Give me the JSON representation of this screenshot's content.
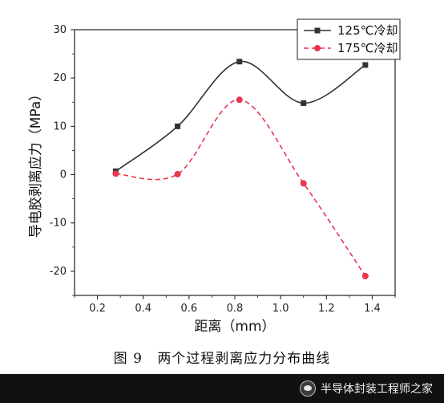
{
  "chart_data": {
    "type": "line",
    "xlabel": "距离（mm）",
    "ylabel": "导电胶剥离应力（MPa）",
    "xlim": [
      0.1,
      1.5
    ],
    "ylim": [
      -25,
      30
    ],
    "xticks": [
      0.2,
      0.4,
      0.6,
      0.8,
      1.0,
      1.2,
      1.4
    ],
    "xtick_labels": [
      "0.2",
      "0.4",
      "0.6",
      "0.8",
      "1.0",
      "1.2",
      "1.4"
    ],
    "yticks": [
      -20,
      -10,
      0,
      10,
      20,
      30
    ],
    "ytick_labels": [
      "-20",
      "-10",
      "0",
      "10",
      "20",
      "30"
    ],
    "legend_position": "top-right",
    "grid": false,
    "smooth": true,
    "series": [
      {
        "name": "125℃冷却",
        "color": "#333333",
        "line_style": "solid",
        "marker": "square",
        "x": [
          0.28,
          0.55,
          0.82,
          1.1,
          1.37
        ],
        "y": [
          0.7,
          10.0,
          23.4,
          14.8,
          22.7
        ]
      },
      {
        "name": "175℃冷却",
        "color": "#e8364f",
        "line_style": "dashed",
        "marker": "circle",
        "x": [
          0.28,
          0.55,
          0.82,
          1.1,
          1.37
        ],
        "y": [
          0.2,
          0.1,
          15.5,
          -1.8,
          -21.0
        ]
      }
    ]
  },
  "caption": {
    "figure_number": "图 9",
    "title": "两个过程剥离应力分布曲线"
  },
  "watermark": {
    "text": "半导体封装工程师之家"
  }
}
